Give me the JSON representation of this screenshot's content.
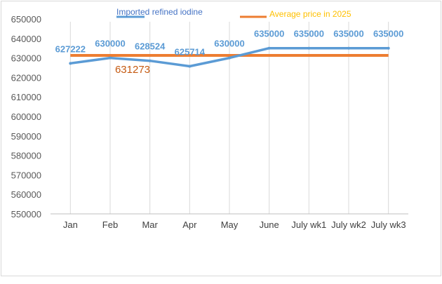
{
  "chart_data": {
    "type": "line",
    "title": "",
    "xlabel": "",
    "ylabel": "",
    "categories": [
      "Jan",
      "Feb",
      "Mar",
      "Apr",
      "May",
      "June",
      "July wk1",
      "July wk2",
      "July wk3"
    ],
    "ylim": [
      550000,
      650000
    ],
    "yticks": [
      550000,
      560000,
      570000,
      580000,
      590000,
      600000,
      610000,
      620000,
      630000,
      640000,
      650000
    ],
    "grid": "vertical",
    "legend_position": "top",
    "series": [
      {
        "name": "Imported refined iodine",
        "values": [
          627222,
          630000,
          628524,
          625714,
          630000,
          635000,
          635000,
          635000,
          635000
        ],
        "data_labels": [
          "627222",
          "630000",
          "628524",
          "625714",
          "630000",
          "635000",
          "635000",
          "635000",
          "635000"
        ],
        "color": "#5b9bd5"
      },
      {
        "name": "Average price in 2025",
        "values": [
          631273,
          631273,
          631273,
          631273,
          631273,
          631273,
          631273,
          631273,
          631273
        ],
        "data_label": "631273",
        "color": "#ed7d31",
        "label_color": "#c55a11"
      }
    ],
    "legend_text_colors": [
      "#4472c4",
      "#ffc000"
    ]
  }
}
